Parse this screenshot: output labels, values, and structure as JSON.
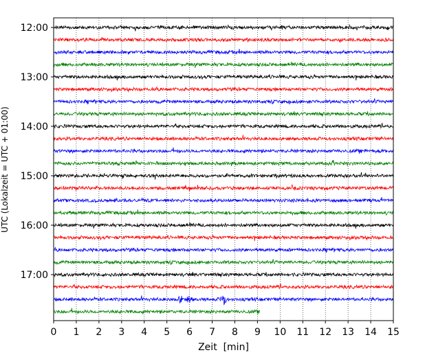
{
  "chart_data": {
    "type": "line",
    "title": "",
    "xlabel": "Zeit  [min]",
    "ylabel": "UTC (Lokalzeit = UTC + 01:00)",
    "xlim": [
      0,
      15
    ],
    "x_ticks": [
      "0",
      "1",
      "2",
      "3",
      "4",
      "5",
      "6",
      "7",
      "8",
      "9",
      "10",
      "11",
      "12",
      "13",
      "14",
      "15"
    ],
    "y_tick_labels": [
      "12:00",
      "13:00",
      "14:00",
      "15:00",
      "16:00",
      "17:00"
    ],
    "y_tick_rows": [
      0,
      4,
      8,
      12,
      16,
      20
    ],
    "grid": "vertical dotted",
    "trace_colors": [
      "#000000",
      "#ff0000",
      "#0000ff",
      "#008000"
    ],
    "traces": [
      {
        "start": "12:00",
        "color": "#000000",
        "end_min": 15
      },
      {
        "start": "12:15",
        "color": "#ff0000",
        "end_min": 15
      },
      {
        "start": "12:30",
        "color": "#0000ff",
        "end_min": 15
      },
      {
        "start": "12:45",
        "color": "#008000",
        "end_min": 15
      },
      {
        "start": "13:00",
        "color": "#000000",
        "end_min": 15
      },
      {
        "start": "13:15",
        "color": "#ff0000",
        "end_min": 15
      },
      {
        "start": "13:30",
        "color": "#0000ff",
        "end_min": 15
      },
      {
        "start": "13:45",
        "color": "#008000",
        "end_min": 15
      },
      {
        "start": "14:00",
        "color": "#000000",
        "end_min": 15
      },
      {
        "start": "14:15",
        "color": "#ff0000",
        "end_min": 15
      },
      {
        "start": "14:30",
        "color": "#0000ff",
        "end_min": 15
      },
      {
        "start": "14:45",
        "color": "#008000",
        "end_min": 15
      },
      {
        "start": "15:00",
        "color": "#000000",
        "end_min": 15
      },
      {
        "start": "15:15",
        "color": "#ff0000",
        "end_min": 15
      },
      {
        "start": "15:30",
        "color": "#0000ff",
        "end_min": 15
      },
      {
        "start": "15:45",
        "color": "#008000",
        "end_min": 15
      },
      {
        "start": "16:00",
        "color": "#000000",
        "end_min": 15
      },
      {
        "start": "16:15",
        "color": "#ff0000",
        "end_min": 15
      },
      {
        "start": "16:30",
        "color": "#0000ff",
        "end_min": 15
      },
      {
        "start": "16:45",
        "color": "#008000",
        "end_min": 15
      },
      {
        "start": "17:00",
        "color": "#000000",
        "end_min": 15
      },
      {
        "start": "17:15",
        "color": "#ff0000",
        "end_min": 15
      },
      {
        "start": "17:30",
        "color": "#0000ff",
        "end_min": 15,
        "events_min": [
          5.6,
          6.0,
          7.5
        ]
      },
      {
        "start": "17:45",
        "color": "#008000",
        "end_min": 9.1
      }
    ]
  }
}
